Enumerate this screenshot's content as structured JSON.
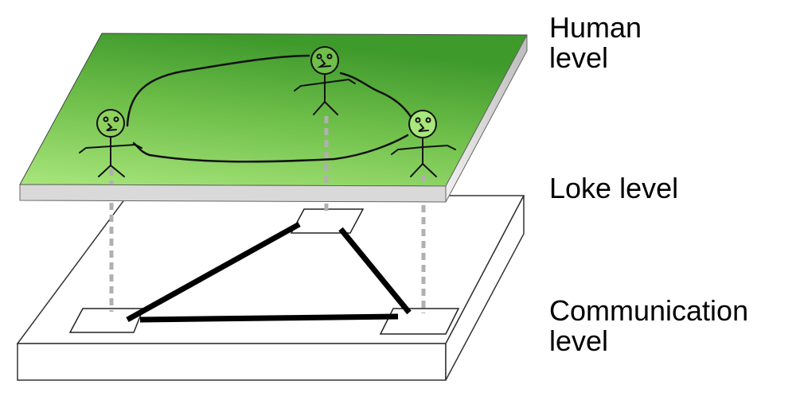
{
  "labels": {
    "human": "Human\nlevel",
    "loke": "Loke level",
    "communication": "Communication\nlevel"
  },
  "colors": {
    "green_dark": "#3f9a2c",
    "green_light": "#c4ee9a",
    "slab_side": "#d6d6d6",
    "connector": "#b0b0b0",
    "ink": "#000000"
  }
}
